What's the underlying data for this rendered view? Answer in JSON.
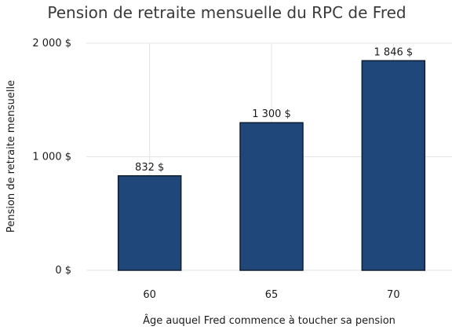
{
  "chart_data": {
    "type": "bar",
    "title": "Pension de retraite mensuelle du RPC de Fred",
    "xlabel": "Âge auquel Fred commence à toucher sa pension",
    "ylabel": "Pension de retraite mensuelle",
    "categories": [
      "60",
      "65",
      "70"
    ],
    "values": [
      832,
      1300,
      1846
    ],
    "value_labels": [
      "832 $",
      "1 300 $",
      "1 846 $"
    ],
    "ylim": [
      0,
      2000
    ],
    "y_ticks": [
      0,
      1000,
      2000
    ],
    "y_tick_labels": [
      "0 $",
      "1 000 $",
      "2 000 $"
    ],
    "grid": true,
    "bar_color": "#1f477a",
    "bar_edge_color": "#0f1e33"
  }
}
